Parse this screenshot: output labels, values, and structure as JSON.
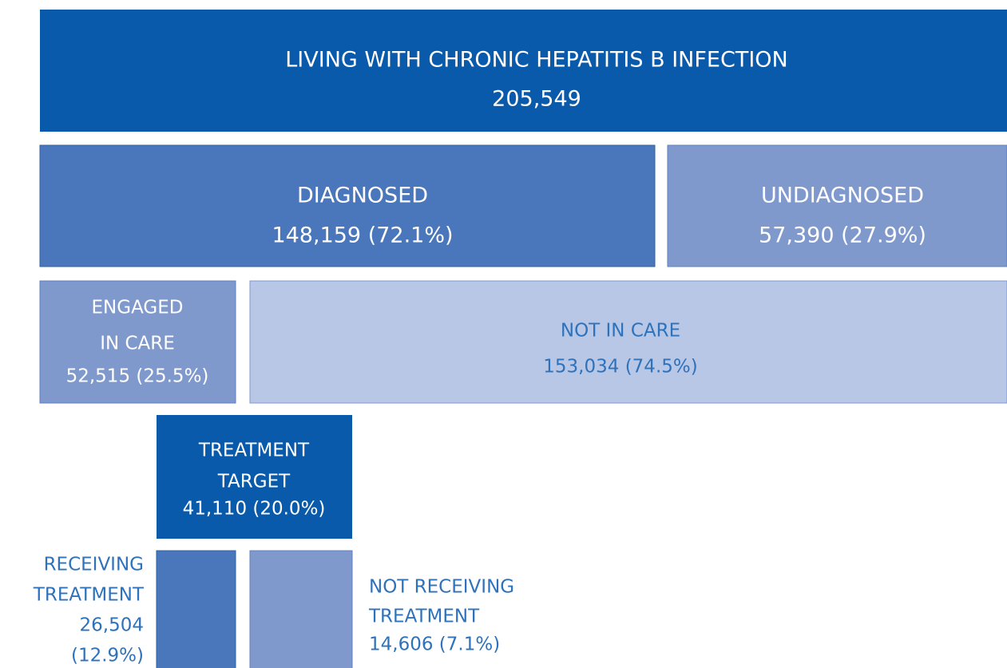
{
  "nodes": [
    {
      "lines": [
        "LIVING WITH CHRONIC HEPATITIS B INFECTION",
        "205,549"
      ]
    },
    {
      "lines": [
        "DIAGNOSED",
        "148,159 (72.1%)"
      ]
    },
    {
      "lines": [
        "UNDIAGNOSED",
        "57,390 (27.9%)"
      ]
    },
    {
      "lines": [
        "ENGAGED",
        "IN CARE",
        "52,515 (25.5%)"
      ]
    },
    {
      "lines": [
        "NOT IN CARE",
        "153,034 (74.5%)"
      ]
    },
    {
      "lines": [
        "TREATMENT",
        "TARGET",
        "41,110 (20.0%)"
      ]
    },
    {
      "lines": [
        "RECEIVING",
        "TREATMENT",
        "26,504",
        "(12.9%)"
      ]
    },
    {
      "lines": [
        "NOT RECEIVING",
        "TREATMENT",
        "14,606 (7.1%)"
      ]
    }
  ]
}
